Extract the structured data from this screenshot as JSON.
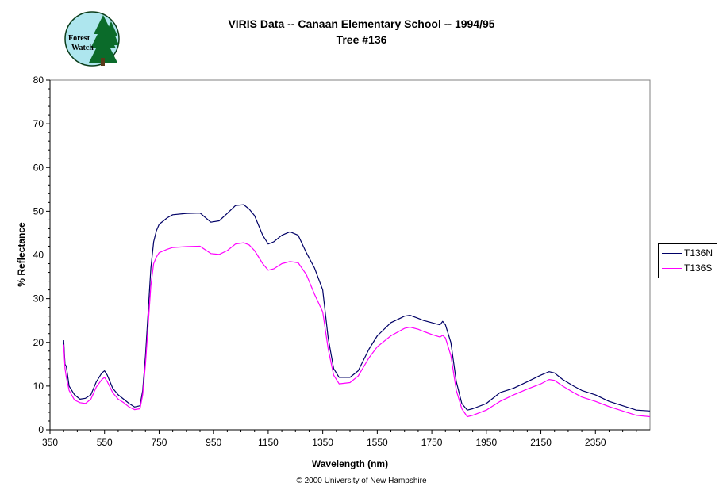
{
  "chart_data": {
    "type": "line",
    "title": "VIRIS Data -- Canaan Elementary School -- 1994/95",
    "subtitle": "Tree #136",
    "xlabel": "Wavelength (nm)",
    "ylabel": "% Reflectance",
    "xlim": [
      350,
      2550
    ],
    "ylim": [
      0,
      80
    ],
    "xticks": [
      350,
      550,
      750,
      950,
      1150,
      1350,
      1550,
      1750,
      1950,
      2150,
      2350
    ],
    "yticks": [
      0,
      10,
      20,
      30,
      40,
      50,
      60,
      70,
      80
    ],
    "grid": false,
    "legend_position": "right",
    "series": [
      {
        "name": "T136N",
        "color": "#000066",
        "x": [
          400,
          405,
          410,
          420,
          440,
          460,
          480,
          500,
          520,
          540,
          550,
          560,
          580,
          600,
          620,
          640,
          660,
          680,
          690,
          700,
          710,
          720,
          730,
          740,
          750,
          780,
          800,
          850,
          900,
          940,
          970,
          1000,
          1030,
          1060,
          1080,
          1100,
          1130,
          1150,
          1170,
          1200,
          1230,
          1260,
          1290,
          1320,
          1350,
          1370,
          1390,
          1410,
          1450,
          1480,
          1520,
          1550,
          1600,
          1650,
          1670,
          1700,
          1720,
          1750,
          1780,
          1790,
          1800,
          1820,
          1840,
          1860,
          1880,
          1900,
          1950,
          2000,
          2050,
          2100,
          2150,
          2180,
          2200,
          2230,
          2270,
          2300,
          2350,
          2400,
          2450,
          2500,
          2550
        ],
        "y": [
          20.5,
          15,
          14.5,
          10,
          8,
          7,
          7.2,
          8,
          11,
          13,
          13.5,
          12.5,
          9.5,
          8,
          7,
          6,
          5.2,
          5.5,
          9,
          17,
          27,
          37,
          43,
          45.5,
          47,
          48.5,
          49.2,
          49.5,
          49.6,
          47.5,
          47.8,
          49.5,
          51.3,
          51.5,
          50.5,
          49,
          44.5,
          42.5,
          43,
          44.5,
          45.3,
          44.5,
          40.5,
          37,
          32,
          21,
          14,
          12,
          12,
          13.5,
          18.5,
          21.5,
          24.5,
          26,
          26.2,
          25.5,
          25,
          24.5,
          24,
          24.8,
          24,
          20,
          11,
          6,
          4.5,
          4.8,
          6,
          8.5,
          9.5,
          11,
          12.5,
          13.3,
          13,
          11.5,
          10,
          9,
          8,
          6.5,
          5.5,
          4.5,
          4.3
        ]
      },
      {
        "name": "T136S",
        "color": "#ff00ff",
        "x": [
          400,
          405,
          410,
          420,
          440,
          460,
          480,
          500,
          520,
          540,
          550,
          560,
          580,
          600,
          620,
          640,
          660,
          680,
          690,
          700,
          710,
          720,
          730,
          740,
          750,
          780,
          800,
          850,
          900,
          940,
          970,
          1000,
          1030,
          1060,
          1080,
          1100,
          1130,
          1150,
          1170,
          1200,
          1230,
          1260,
          1290,
          1320,
          1350,
          1370,
          1390,
          1410,
          1450,
          1480,
          1520,
          1550,
          1600,
          1650,
          1670,
          1700,
          1720,
          1750,
          1780,
          1790,
          1800,
          1820,
          1840,
          1860,
          1880,
          1900,
          1950,
          2000,
          2050,
          2100,
          2150,
          2180,
          2200,
          2230,
          2270,
          2300,
          2350,
          2400,
          2450,
          2500,
          2550
        ],
        "y": [
          19.5,
          14,
          12,
          9,
          6.8,
          6.2,
          6,
          7,
          9.8,
          11.5,
          12,
          11,
          8.5,
          7,
          6.2,
          5.2,
          4.6,
          4.8,
          8,
          15,
          24,
          33,
          38,
          39.5,
          40.5,
          41.3,
          41.7,
          41.9,
          42,
          40.3,
          40.1,
          41,
          42.5,
          42.8,
          42.3,
          41,
          38,
          36.5,
          36.8,
          38,
          38.5,
          38.2,
          35.5,
          31,
          27,
          18.5,
          12.5,
          10.5,
          10.8,
          12.3,
          16.5,
          19,
          21.5,
          23.2,
          23.5,
          23,
          22.5,
          21.8,
          21.2,
          21.6,
          21,
          17,
          9,
          4.8,
          3,
          3.3,
          4.5,
          6.5,
          8,
          9.3,
          10.5,
          11.5,
          11.3,
          10,
          8.5,
          7.5,
          6.5,
          5.3,
          4.3,
          3.3,
          3
        ]
      }
    ]
  },
  "logo": {
    "text_line1": "Forest",
    "text_line2": "Watch",
    "bg_color": "#aee6ee",
    "tree_color": "#0b6b2a"
  },
  "footer": {
    "copyright": "© 2000 University of New Hampshire"
  }
}
